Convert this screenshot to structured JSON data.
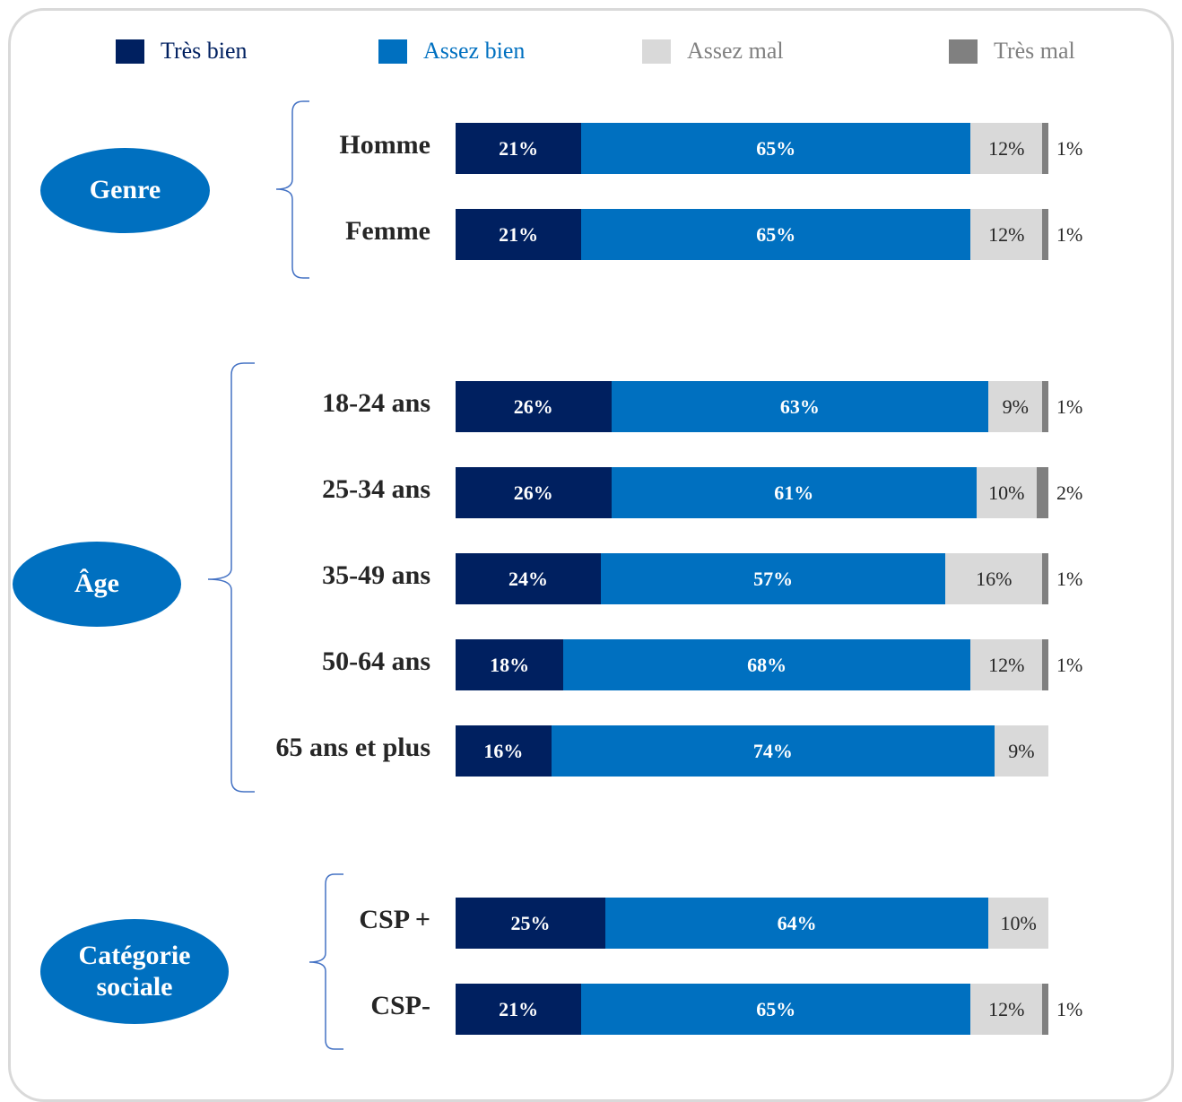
{
  "colors": {
    "tres_bien": "#002060",
    "assez_bien": "#0070c0",
    "assez_mal": "#d9d9d9",
    "tres_mal": "#808080",
    "bracket": "#4472c4"
  },
  "legend": [
    {
      "key": "tres_bien",
      "label": "Très bien",
      "text_color": "#002060"
    },
    {
      "key": "assez_bien",
      "label": "Assez bien",
      "text_color": "#0070c0"
    },
    {
      "key": "assez_mal",
      "label": "Assez mal",
      "text_color": "#808080"
    },
    {
      "key": "tres_mal",
      "label": "Très mal",
      "text_color": "#808080"
    }
  ],
  "groups": {
    "genre": "Genre",
    "age": "Âge",
    "categorie": "Catégorie sociale"
  },
  "chart_data": {
    "type": "bar",
    "orientation": "horizontal",
    "stacked": true,
    "categories": [
      "Homme",
      "Femme",
      "18-24 ans",
      "25-34 ans",
      "35-49 ans",
      "50-64 ans",
      "65 ans et plus",
      "CSP +",
      "CSP-"
    ],
    "series": [
      {
        "name": "Très bien",
        "values": [
          21,
          21,
          26,
          26,
          24,
          18,
          16,
          25,
          21
        ],
        "labels": [
          "21%",
          "21%",
          "26%",
          "26%",
          "24%",
          "18%",
          "16%",
          "25%",
          "21%"
        ]
      },
      {
        "name": "Assez bien",
        "values": [
          65,
          65,
          63,
          61,
          57,
          68,
          74,
          64,
          65
        ],
        "labels": [
          "65%",
          "65%",
          "63%",
          "61%",
          "57%",
          "68%",
          "74%",
          "64%",
          "65%"
        ]
      },
      {
        "name": "Assez mal",
        "values": [
          12,
          12,
          9,
          10,
          16,
          12,
          9,
          10,
          12
        ],
        "labels": [
          "12%",
          "12%",
          "9%",
          "10%",
          "16%",
          "12%",
          "9%",
          "10%",
          "12%"
        ]
      },
      {
        "name": "Très mal",
        "values": [
          1,
          1,
          1,
          2,
          1,
          1,
          0,
          0,
          1
        ],
        "labels": [
          "1%",
          "1%",
          "1%",
          "2%",
          "1%",
          "1%",
          "",
          "",
          "1%"
        ]
      }
    ],
    "unit": "%"
  }
}
